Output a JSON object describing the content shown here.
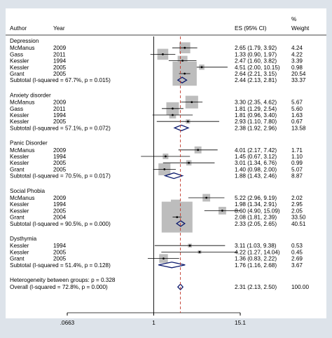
{
  "chart_data": {
    "type": "forest",
    "columns": {
      "author": "Author",
      "year": "Year",
      "es": "ES (95% CI)",
      "weight_top": "%",
      "weight_bottom": "Weight"
    },
    "x_ticks": [
      {
        "value": 0.0663,
        "label": ".0663"
      },
      {
        "value": 1,
        "label": "1"
      },
      {
        "value": 15.1,
        "label": "15.1"
      }
    ],
    "x_scale": "log",
    "overall_effect": 2.31,
    "groups": [
      {
        "name": "Depression",
        "studies": [
          {
            "author": "McManus",
            "year": "2009",
            "es": 2.65,
            "lo": 1.79,
            "hi": 3.92,
            "ci": "2.65 (1.79, 3.92)",
            "weight": "4.24"
          },
          {
            "author": "Gass",
            "year": "2011",
            "es": 1.33,
            "lo": 0.9,
            "hi": 1.97,
            "ci": "1.33 (0.90, 1.97)",
            "weight": "4.22"
          },
          {
            "author": "Kessler",
            "year": "1994",
            "es": 2.47,
            "lo": 1.6,
            "hi": 3.82,
            "ci": "2.47 (1.60, 3.82)",
            "weight": "3.39"
          },
          {
            "author": "Kessler",
            "year": "2005",
            "es": 4.51,
            "lo": 2.0,
            "hi": 10.15,
            "ci": "4.51 (2.00, 10.15)",
            "weight": "0.98"
          },
          {
            "author": "Grant",
            "year": "2005",
            "es": 2.64,
            "lo": 2.21,
            "hi": 3.15,
            "ci": "2.64 (2.21, 3.15)",
            "weight": "20.54"
          }
        ],
        "subtotal": {
          "label": "Subtotal  (I-squared = 67.7%, p = 0.015)",
          "es": 2.44,
          "lo": 2.13,
          "hi": 2.81,
          "ci": "2.44 (2.13, 2.81)",
          "weight": "33.37"
        }
      },
      {
        "name": "Anxiety disorder",
        "studies": [
          {
            "author": "McManus",
            "year": "2009",
            "es": 3.3,
            "lo": 2.35,
            "hi": 4.62,
            "ci": "3.30 (2.35, 4.62)",
            "weight": "5.67"
          },
          {
            "author": "Gass",
            "year": "2011",
            "es": 1.81,
            "lo": 1.29,
            "hi": 2.54,
            "ci": "1.81 (1.29, 2.54)",
            "weight": "5.60"
          },
          {
            "author": "Kessler",
            "year": "1994",
            "es": 1.81,
            "lo": 0.96,
            "hi": 3.4,
            "ci": "1.81 (0.96, 3.40)",
            "weight": "1.63"
          },
          {
            "author": "Kessler",
            "year": "2005",
            "es": 2.93,
            "lo": 1.1,
            "hi": 7.8,
            "ci": "2.93 (1.10, 7.80)",
            "weight": "0.67"
          }
        ],
        "subtotal": {
          "label": "Subtotal  (I-squared = 57.1%, p = 0.072)",
          "es": 2.38,
          "lo": 1.92,
          "hi": 2.96,
          "ci": "2.38 (1.92, 2.96)",
          "weight": "13.58"
        }
      },
      {
        "name": "Panic Disorder",
        "studies": [
          {
            "author": "McManus",
            "year": "2009",
            "es": 4.01,
            "lo": 2.17,
            "hi": 7.42,
            "ci": "4.01 (2.17, 7.42)",
            "weight": "1.71"
          },
          {
            "author": "Kessler",
            "year": "1994",
            "es": 1.45,
            "lo": 0.67,
            "hi": 3.12,
            "ci": "1.45 (0.67, 3.12)",
            "weight": "1.10"
          },
          {
            "author": "Kessler",
            "year": "2005",
            "es": 3.01,
            "lo": 1.34,
            "hi": 6.76,
            "ci": "3.01 (1.34, 6.76)",
            "weight": "0.99"
          },
          {
            "author": "Grant",
            "year": "2005",
            "es": 1.4,
            "lo": 0.98,
            "hi": 2.0,
            "ci": "1.40 (0.98, 2.00)",
            "weight": "5.07"
          }
        ],
        "subtotal": {
          "label": "Subtotal  (I-squared = 70.5%, p = 0.017)",
          "es": 1.88,
          "lo": 1.43,
          "hi": 2.46,
          "ci": "1.88 (1.43, 2.46)",
          "weight": "8.87"
        }
      },
      {
        "name": "Social Phobia",
        "studies": [
          {
            "author": "McManus",
            "year": "2009",
            "es": 5.22,
            "lo": 2.96,
            "hi": 9.19,
            "ci": "5.22 (2.96, 9.19)",
            "weight": "2.02"
          },
          {
            "author": "Kessler",
            "year": "1994",
            "es": 1.98,
            "lo": 1.34,
            "hi": 2.91,
            "ci": "1.98 (1.34, 2.91)",
            "weight": "2.95"
          },
          {
            "author": "Kessler",
            "year": "2005",
            "es": 8.6,
            "lo": 4.9,
            "hi": 15.09,
            "ci": "8.60 (4.90, 15.09)",
            "weight": "2.05"
          },
          {
            "author": "Grant",
            "year": "2004",
            "es": 2.08,
            "lo": 1.81,
            "hi": 2.39,
            "ci": "2.08 (1.81, 2.39)",
            "weight": "33.50"
          }
        ],
        "subtotal": {
          "label": "Subtotal  (I-squared = 90.5%, p = 0.000)",
          "es": 2.33,
          "lo": 2.05,
          "hi": 2.65,
          "ci": "2.33 (2.05, 2.65)",
          "weight": "40.51"
        }
      },
      {
        "name": "Dysthymia",
        "studies": [
          {
            "author": "Kessler",
            "year": "1994",
            "es": 3.11,
            "lo": 1.03,
            "hi": 9.38,
            "ci": "3.11 (1.03, 9.38)",
            "weight": "0.53"
          },
          {
            "author": "Kessler",
            "year": "2005",
            "es": 4.22,
            "lo": 1.27,
            "hi": 14.04,
            "ci": "4.22 (1.27, 14.04)",
            "weight": "0.45"
          },
          {
            "author": "Grant",
            "year": "2005",
            "es": 1.36,
            "lo": 0.83,
            "hi": 2.22,
            "ci": "1.36 (0.83, 2.22)",
            "weight": "2.69"
          }
        ],
        "subtotal": {
          "label": "Subtotal  (I-squared = 51.4%, p = 0.128)",
          "es": 1.76,
          "lo": 1.16,
          "hi": 2.68,
          "ci": "1.76 (1.16, 2.68)",
          "weight": "3.67"
        }
      }
    ],
    "heterogeneity": "Heterogeneity between groups: p = 0.328",
    "overall": {
      "label": "Overall  (I-squared = 72.8%, p = 0.000)",
      "es": 2.31,
      "lo": 2.13,
      "hi": 2.5,
      "ci": "2.31 (2.13, 2.50)",
      "weight": "100.00"
    },
    "colors": {
      "box": "#bdbdbd",
      "diamond": "#0b1a6e",
      "ref_line": "#000000",
      "overall_line": "#c0392b",
      "background": "#dde3ea",
      "panel": "#ffffff"
    }
  }
}
